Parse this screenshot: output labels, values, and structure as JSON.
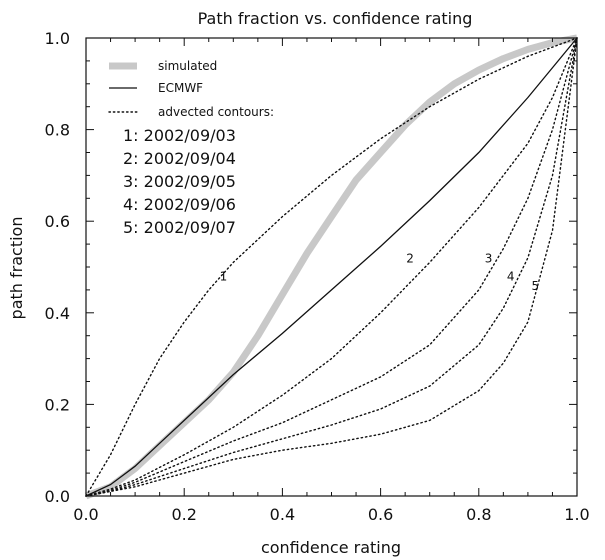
{
  "chart_data": {
    "type": "line",
    "title": "Path fraction vs. confidence rating",
    "xlabel": "confidence rating",
    "ylabel": "path fraction",
    "xlim": [
      0.0,
      1.0
    ],
    "ylim": [
      0.0,
      1.0
    ],
    "xticks": [
      "0.0",
      "0.2",
      "0.4",
      "0.6",
      "0.8",
      "1.0"
    ],
    "yticks": [
      "0.0",
      "0.2",
      "0.4",
      "0.6",
      "0.8",
      "1.0"
    ],
    "grid": false,
    "legend": {
      "placement": "top-left",
      "entries": [
        {
          "label": "simulated",
          "style": "thick-gray"
        },
        {
          "label": "ECMWF",
          "style": "solid"
        },
        {
          "label": "advected contours:",
          "style": "dotted"
        }
      ],
      "sub_entries": [
        "1: 2002/09/03",
        "2: 2002/09/04",
        "3: 2002/09/05",
        "4: 2002/09/06",
        "5: 2002/09/07"
      ]
    },
    "colors": {
      "simulated": "#c8c8c8",
      "line": "#111111"
    },
    "series": [
      {
        "name": "simulated",
        "style": "thick-gray",
        "x": [
          0.0,
          0.05,
          0.1,
          0.15,
          0.2,
          0.25,
          0.3,
          0.35,
          0.4,
          0.45,
          0.5,
          0.55,
          0.6,
          0.65,
          0.7,
          0.75,
          0.8,
          0.85,
          0.9,
          0.95,
          1.0
        ],
        "y": [
          0.0,
          0.02,
          0.06,
          0.11,
          0.16,
          0.21,
          0.27,
          0.35,
          0.44,
          0.53,
          0.61,
          0.69,
          0.75,
          0.81,
          0.86,
          0.9,
          0.93,
          0.955,
          0.975,
          0.99,
          1.0
        ]
      },
      {
        "name": "ECMWF",
        "style": "solid",
        "x": [
          0.0,
          0.05,
          0.1,
          0.15,
          0.2,
          0.25,
          0.3,
          0.4,
          0.5,
          0.6,
          0.7,
          0.8,
          0.9,
          1.0
        ],
        "y": [
          0.0,
          0.025,
          0.065,
          0.115,
          0.165,
          0.215,
          0.265,
          0.355,
          0.45,
          0.545,
          0.645,
          0.75,
          0.87,
          1.0
        ]
      },
      {
        "name": "1",
        "style": "dotted",
        "label_at": [
          0.28,
          0.47
        ],
        "x": [
          0.0,
          0.05,
          0.1,
          0.15,
          0.2,
          0.25,
          0.3,
          0.4,
          0.5,
          0.6,
          0.7,
          0.8,
          0.9,
          1.0
        ],
        "y": [
          0.0,
          0.09,
          0.2,
          0.3,
          0.38,
          0.45,
          0.51,
          0.61,
          0.7,
          0.78,
          0.85,
          0.91,
          0.96,
          1.0
        ]
      },
      {
        "name": "2",
        "style": "dotted",
        "label_at": [
          0.66,
          0.51
        ],
        "x": [
          0.0,
          0.05,
          0.1,
          0.2,
          0.3,
          0.4,
          0.5,
          0.6,
          0.7,
          0.8,
          0.9,
          0.95,
          1.0
        ],
        "y": [
          0.0,
          0.015,
          0.035,
          0.09,
          0.15,
          0.22,
          0.3,
          0.4,
          0.51,
          0.63,
          0.77,
          0.87,
          1.0
        ]
      },
      {
        "name": "3",
        "style": "dotted",
        "label_at": [
          0.82,
          0.51
        ],
        "x": [
          0.0,
          0.05,
          0.1,
          0.2,
          0.3,
          0.4,
          0.5,
          0.6,
          0.7,
          0.8,
          0.85,
          0.9,
          0.95,
          1.0
        ],
        "y": [
          0.0,
          0.012,
          0.03,
          0.075,
          0.12,
          0.16,
          0.21,
          0.26,
          0.33,
          0.45,
          0.54,
          0.65,
          0.8,
          1.0
        ]
      },
      {
        "name": "4",
        "style": "dotted",
        "label_at": [
          0.865,
          0.47
        ],
        "x": [
          0.0,
          0.05,
          0.1,
          0.2,
          0.3,
          0.4,
          0.5,
          0.6,
          0.7,
          0.8,
          0.85,
          0.9,
          0.95,
          1.0
        ],
        "y": [
          0.0,
          0.01,
          0.025,
          0.06,
          0.095,
          0.125,
          0.155,
          0.19,
          0.24,
          0.33,
          0.41,
          0.52,
          0.7,
          1.0
        ]
      },
      {
        "name": "5",
        "style": "dotted",
        "label_at": [
          0.915,
          0.45
        ],
        "x": [
          0.0,
          0.05,
          0.1,
          0.2,
          0.3,
          0.4,
          0.5,
          0.6,
          0.7,
          0.8,
          0.85,
          0.9,
          0.95,
          1.0
        ],
        "y": [
          0.0,
          0.01,
          0.02,
          0.05,
          0.08,
          0.1,
          0.115,
          0.135,
          0.165,
          0.23,
          0.29,
          0.38,
          0.58,
          1.0
        ]
      }
    ]
  }
}
